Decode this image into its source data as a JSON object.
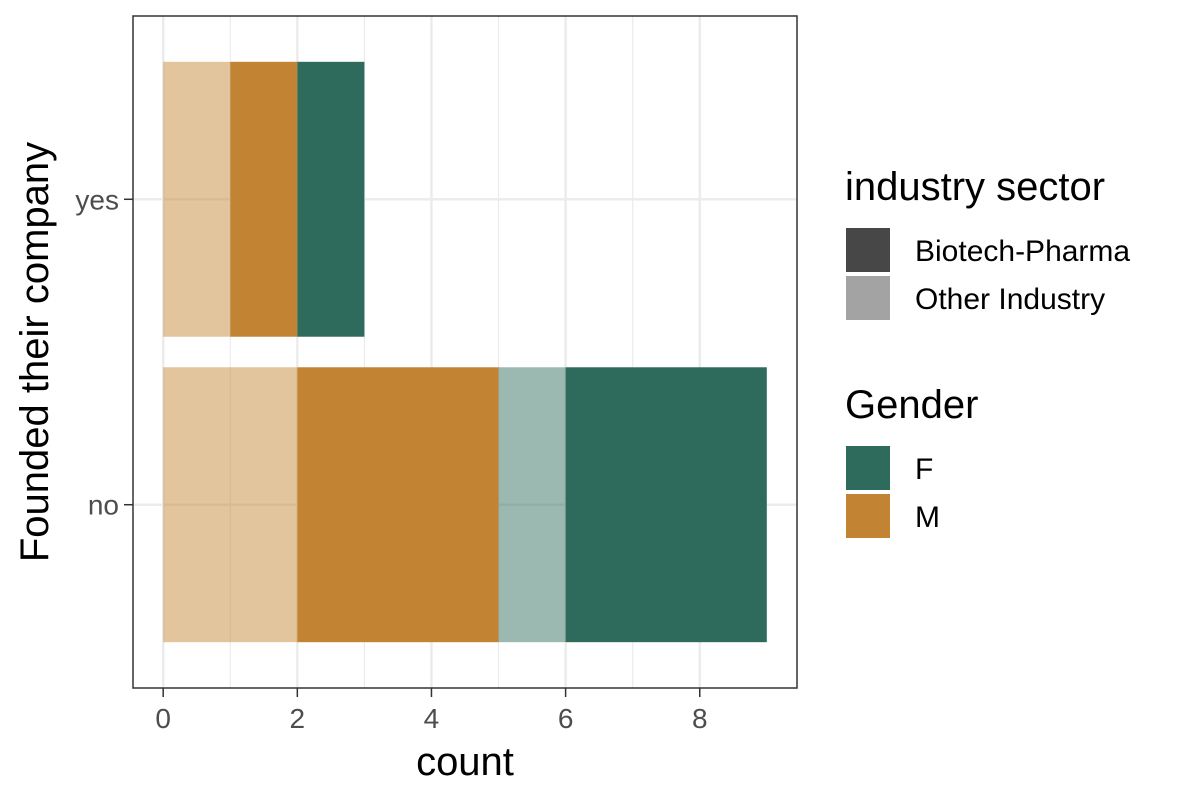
{
  "chart_data": {
    "type": "bar",
    "orientation": "horizontal",
    "stacked": true,
    "xlabel": "count",
    "ylabel": "Founded their company",
    "xlim": [
      -0.45,
      9.45
    ],
    "x_ticks": [
      0,
      2,
      4,
      6,
      8
    ],
    "categories": [
      "no",
      "yes"
    ],
    "grid": true,
    "legend_position": "right",
    "segments": [
      {
        "category": "yes",
        "start": 0,
        "end": 1,
        "gender": "M",
        "sector": "Other Industry"
      },
      {
        "category": "yes",
        "start": 1,
        "end": 2,
        "gender": "M",
        "sector": "Biotech-Pharma"
      },
      {
        "category": "yes",
        "start": 2,
        "end": 3,
        "gender": "F",
        "sector": "Biotech-Pharma"
      },
      {
        "category": "no",
        "start": 0,
        "end": 2,
        "gender": "M",
        "sector": "Other Industry"
      },
      {
        "category": "no",
        "start": 2,
        "end": 5,
        "gender": "M",
        "sector": "Biotech-Pharma"
      },
      {
        "category": "no",
        "start": 5,
        "end": 6,
        "gender": "F",
        "sector": "Other Industry"
      },
      {
        "category": "no",
        "start": 6,
        "end": 9,
        "gender": "F",
        "sector": "Biotech-Pharma"
      }
    ],
    "colors": {
      "F": "#2f6b5d",
      "M": "#c28333"
    },
    "sector_opacity": {
      "Biotech-Pharma": 1.0,
      "Other Industry": 0.48
    },
    "legends": [
      {
        "title": "industry sector",
        "items": [
          {
            "label": "Biotech-Pharma",
            "color": "#474747"
          },
          {
            "label": "Other Industry",
            "color": "#a3a3a3"
          }
        ]
      },
      {
        "title": "Gender",
        "items": [
          {
            "label": "F",
            "color": "#2f6b5d"
          },
          {
            "label": "M",
            "color": "#c28333"
          }
        ]
      }
    ]
  }
}
